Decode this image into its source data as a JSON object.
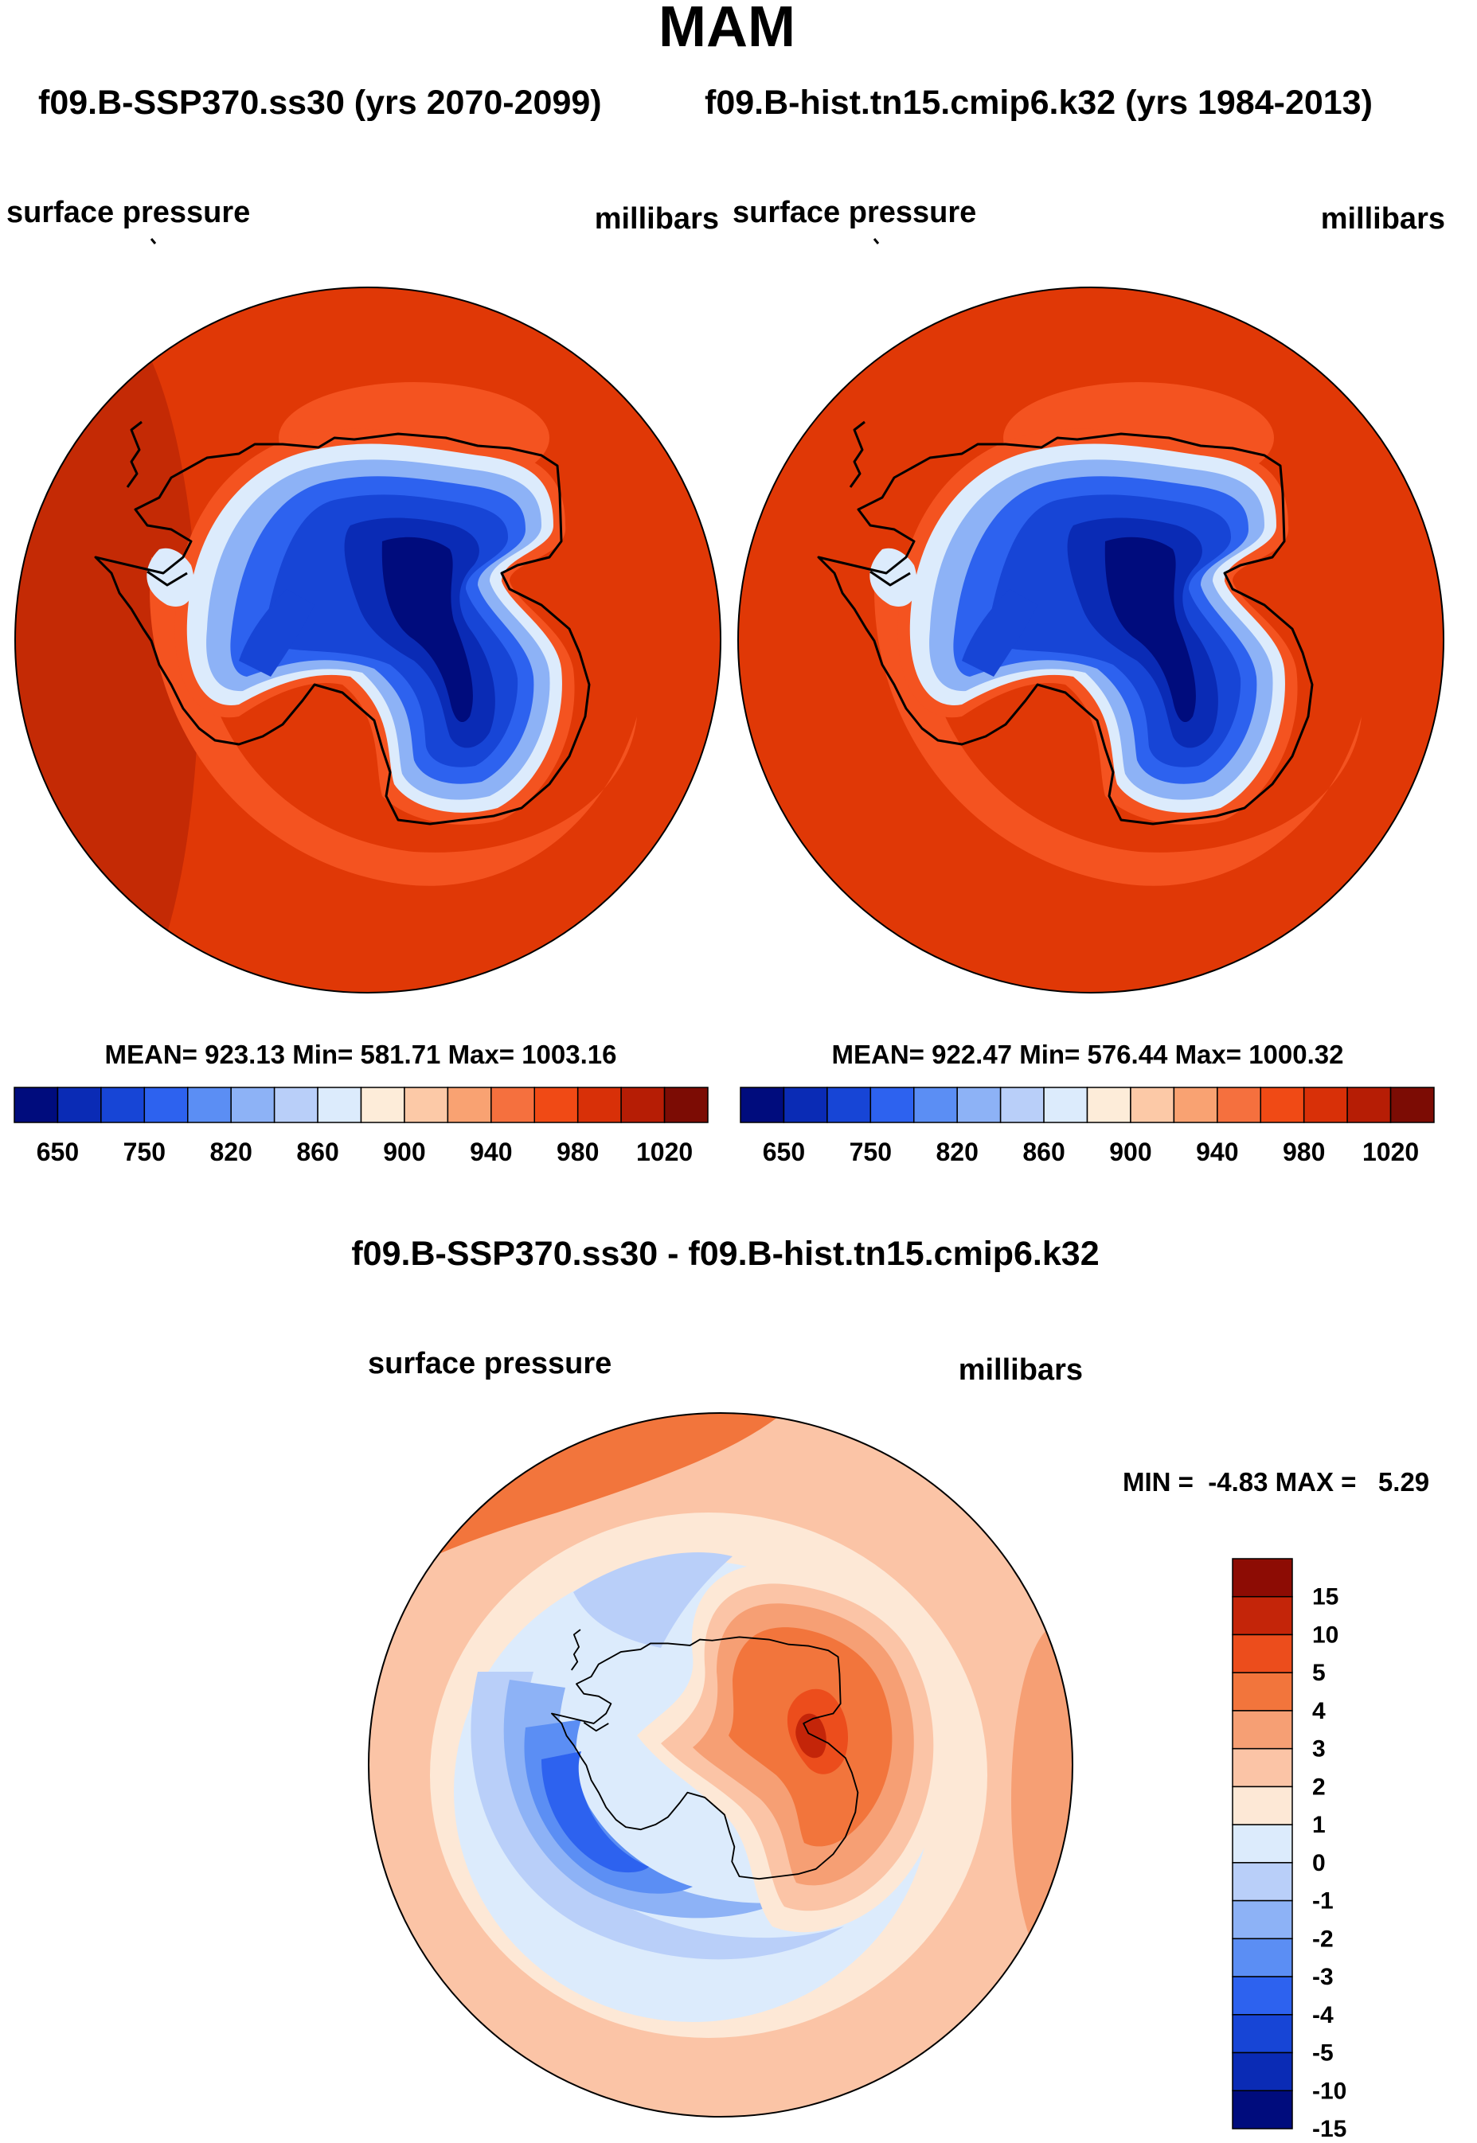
{
  "season": "MAM",
  "header_left": "f09.B-SSP370.ss30 (yrs 2070-2099)",
  "header_right": "f09.B-hist.tn15.cmip6.k32 (yrs 1984-2013)",
  "chart_data": [
    {
      "type": "heatmap",
      "projection": "south-polar-stereographic",
      "title": "surface pressure",
      "units": "millibars",
      "stats_text": "MEAN= 923.13  Min= 581.71  Max= 1003.16",
      "mean": 923.13,
      "min": 581.71,
      "max": 1003.16,
      "colorbar_ticks": [
        "650",
        "750",
        "820",
        "860",
        "900",
        "940",
        "980",
        "1020"
      ],
      "colorbar_colors": [
        "#000c7d",
        "#0a2bb5",
        "#1745d6",
        "#2d62ef",
        "#5b8ef4",
        "#8db2f6",
        "#b9cff9",
        "#dcebfc",
        "#fdecd9",
        "#fcc9a7",
        "#f9a272",
        "#f5703e",
        "#f04a15",
        "#d83008",
        "#b61d05",
        "#7c0c04"
      ],
      "colorbar_orientation": "horizontal"
    },
    {
      "type": "heatmap",
      "projection": "south-polar-stereographic",
      "title": "surface pressure",
      "units": "millibars",
      "stats_text": "MEAN= 922.47  Min= 576.44  Max= 1000.32",
      "mean": 922.47,
      "min": 576.44,
      "max": 1000.32,
      "colorbar_ticks": [
        "650",
        "750",
        "820",
        "860",
        "900",
        "940",
        "980",
        "1020"
      ],
      "colorbar_colors": [
        "#000c7d",
        "#0a2bb5",
        "#1745d6",
        "#2d62ef",
        "#5b8ef4",
        "#8db2f6",
        "#b9cff9",
        "#dcebfc",
        "#fdecd9",
        "#fcc9a7",
        "#f9a272",
        "#f5703e",
        "#f04a15",
        "#d83008",
        "#b61d05",
        "#7c0c04"
      ],
      "colorbar_orientation": "horizontal"
    },
    {
      "type": "heatmap",
      "projection": "south-polar-stereographic",
      "heading": "f09.B-SSP370.ss30 - f09.B-hist.tn15.cmip6.k32",
      "title": "surface pressure",
      "units": "millibars",
      "stats_text": "MIN =  -4.83 MAX =   5.29",
      "min": -4.83,
      "max": 5.29,
      "colorbar_ticks": [
        "15",
        "10",
        "5",
        "4",
        "3",
        "2",
        "1",
        "0",
        "-1",
        "-2",
        "-3",
        "-4",
        "-5",
        "-10",
        "-15"
      ],
      "colorbar_colors": [
        "#8d0c04",
        "#c42509",
        "#ec4d1c",
        "#f2753c",
        "#f69f74",
        "#fbc4a6",
        "#fde8d6",
        "#dcebfc",
        "#b9cff9",
        "#8db2f6",
        "#5b8ef4",
        "#2d62ef",
        "#1745d6",
        "#0a2bb5",
        "#000c7d"
      ],
      "colorbar_orientation": "vertical"
    }
  ]
}
